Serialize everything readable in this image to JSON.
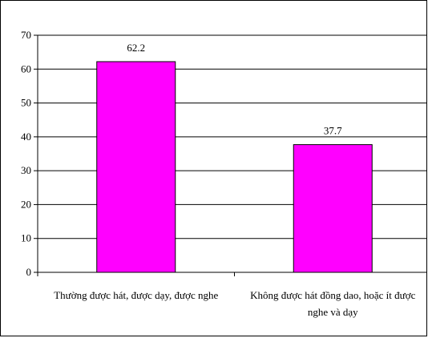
{
  "chart_data": {
    "type": "bar",
    "categories": [
      [
        "Thường được hát, được dạy, được nghe"
      ],
      [
        "Không được hát đồng dao, hoặc ít được",
        "nghe và dạy"
      ]
    ],
    "values": [
      62.2,
      37.7
    ],
    "data_labels": [
      "62.2",
      "37.7"
    ],
    "y_ticks": [
      "0",
      "10",
      "20",
      "30",
      "40",
      "50",
      "60",
      "70"
    ],
    "ylim": [
      0,
      70
    ],
    "title": "",
    "xlabel": "",
    "ylabel": "",
    "grid": true,
    "bar_color": "#FF00FF",
    "bar_border": "#000000",
    "gridline_color": "#000000"
  }
}
